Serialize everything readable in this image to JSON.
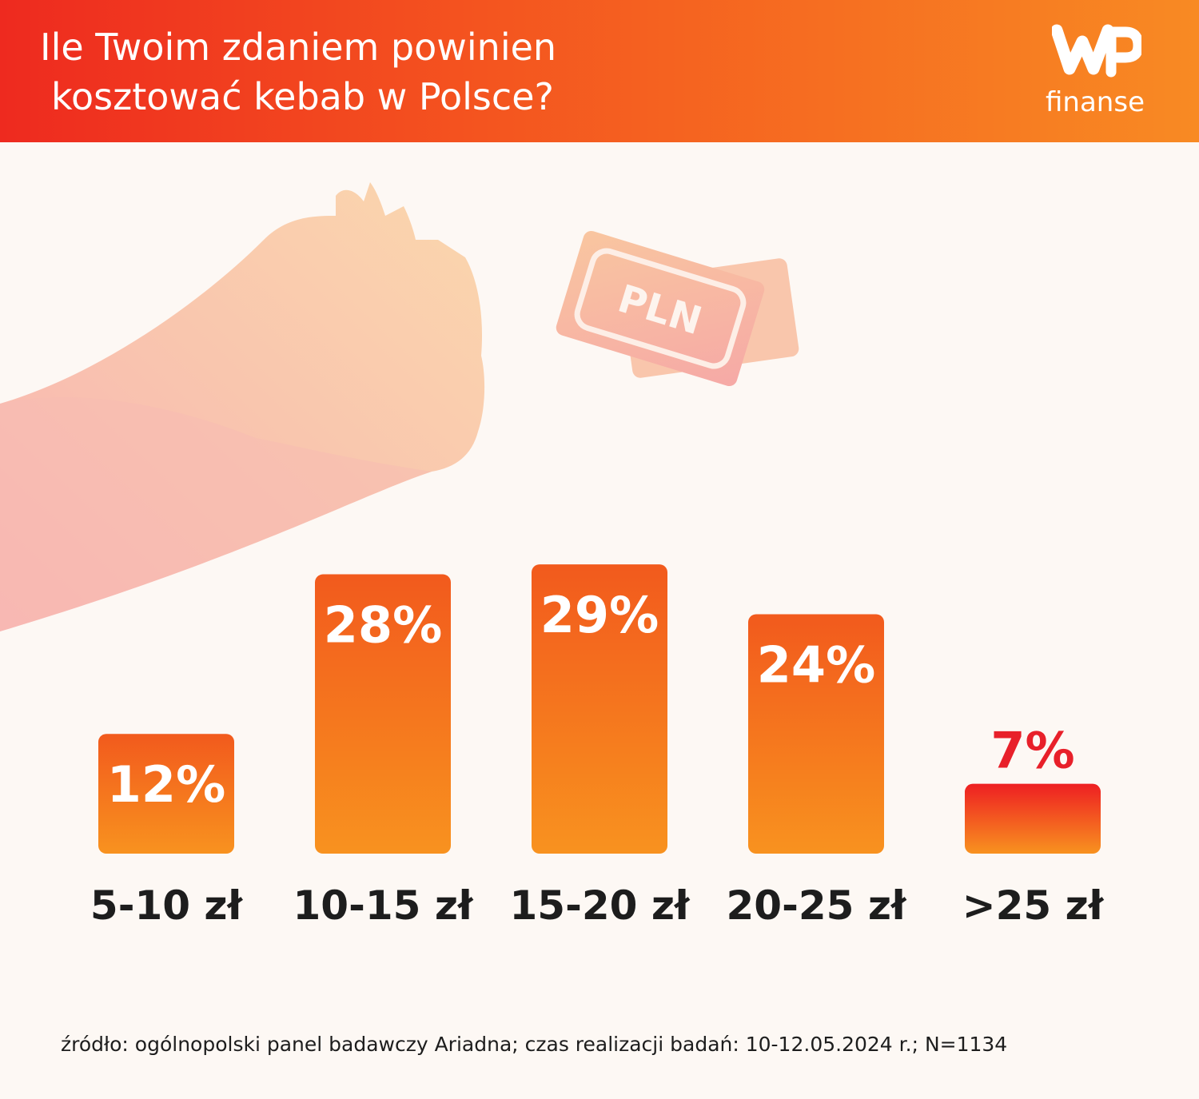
{
  "header": {
    "title_line1": "Ile Twoim zdaniem powinien",
    "title_line2": "kosztować kebab w Polsce?"
  },
  "logo": {
    "mark": "WP",
    "text": "finanse"
  },
  "illustration": {
    "icons": [
      "hand-icon",
      "banknote-icon"
    ],
    "banknote_text": "PLN"
  },
  "chart_data": {
    "type": "bar",
    "title": "Ile Twoim zdaniem powinien kosztować kebab w Polsce?",
    "categories": [
      "5-10 zł",
      "10-15 zł",
      "15-20 zł",
      "20-25 zł",
      ">25 zł"
    ],
    "values": [
      12,
      28,
      29,
      24,
      7
    ],
    "value_labels": [
      "12%",
      "28%",
      "29%",
      "24%",
      "7%"
    ],
    "unit": "%",
    "ylim": [
      0,
      29
    ],
    "grid": false,
    "legend": "none",
    "colors": {
      "bar_top": "#f25a1d",
      "bar_bottom": "#f8921f",
      "small_bar_top": "#ee1f22",
      "label_inside": "#ffffff",
      "label_outside": "#e8202a"
    }
  },
  "footer": {
    "source": "źródło: ogólnopolski panel badawczy Ariadna; czas realizacji badań: 10-12.05.2024 r.; N=1134"
  }
}
